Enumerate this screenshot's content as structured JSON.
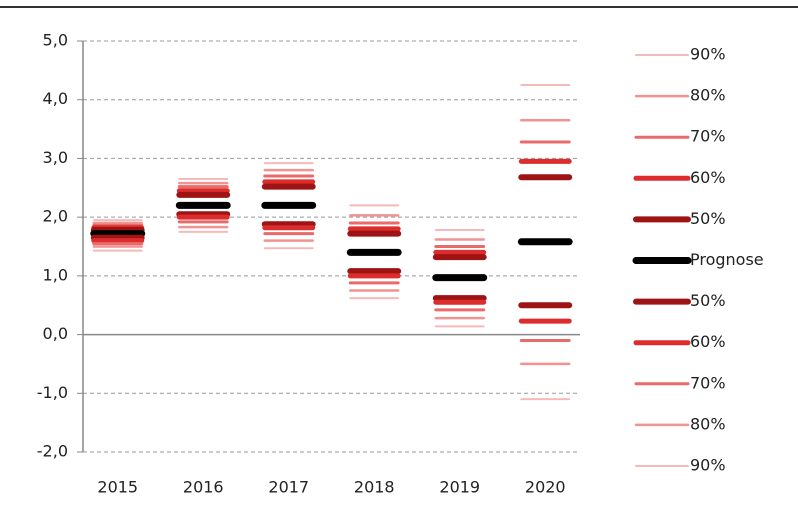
{
  "chart_data": {
    "type": "fan",
    "categories": [
      "2015",
      "2016",
      "2017",
      "2018",
      "2019",
      "2020"
    ],
    "ylim": [
      -2,
      5
    ],
    "yticks": [
      {
        "value": 5,
        "label": "5,0"
      },
      {
        "value": 4,
        "label": "4,0"
      },
      {
        "value": 3,
        "label": "3,0"
      },
      {
        "value": 2,
        "label": "2,0"
      },
      {
        "value": 1,
        "label": "1,0"
      },
      {
        "value": 0,
        "label": "0,0"
      },
      {
        "value": -1,
        "label": "-1,0"
      },
      {
        "value": -2,
        "label": "-2,0"
      }
    ],
    "grid": true,
    "series": [
      {
        "name": "90%",
        "color": "#f5b9b9",
        "values": [
          1.95,
          2.65,
          2.92,
          2.2,
          1.78,
          4.25
        ]
      },
      {
        "name": "80%",
        "color": "#ef9393",
        "values": [
          1.9,
          2.58,
          2.8,
          2.03,
          1.62,
          3.65
        ]
      },
      {
        "name": "70%",
        "color": "#e96a6a",
        "values": [
          1.86,
          2.52,
          2.7,
          1.9,
          1.5,
          3.28
        ]
      },
      {
        "name": "60%",
        "color": "#dc2c2c",
        "values": [
          1.82,
          2.45,
          2.6,
          1.8,
          1.4,
          2.95
        ]
      },
      {
        "name": "50%",
        "color": "#9e1414",
        "values": [
          1.78,
          2.38,
          2.52,
          1.72,
          1.32,
          2.68
        ]
      },
      {
        "name": "Prognose",
        "color": "#000000",
        "values": [
          1.72,
          2.2,
          2.2,
          1.4,
          0.97,
          1.58
        ]
      },
      {
        "name": "50%",
        "color": "#9e1414",
        "values": [
          1.65,
          2.05,
          1.88,
          1.08,
          0.62,
          0.5
        ]
      },
      {
        "name": "60%",
        "color": "#dc2c2c",
        "values": [
          1.6,
          2.0,
          1.82,
          1.0,
          0.55,
          0.23
        ]
      },
      {
        "name": "70%",
        "color": "#e96a6a",
        "values": [
          1.55,
          1.92,
          1.72,
          0.88,
          0.42,
          -0.1
        ]
      },
      {
        "name": "80%",
        "color": "#ef9393",
        "values": [
          1.5,
          1.83,
          1.6,
          0.75,
          0.28,
          -0.5
        ]
      },
      {
        "name": "90%",
        "color": "#f5b9b9",
        "values": [
          1.43,
          1.75,
          1.47,
          0.62,
          0.14,
          -1.1
        ]
      }
    ]
  }
}
